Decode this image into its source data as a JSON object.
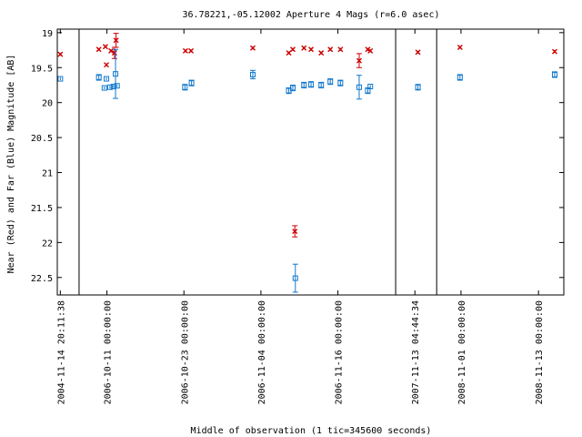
{
  "chart_data": {
    "type": "scatter",
    "title": "36.78221,-05.12002   Aperture 4 Mags (r=6.0 asec)",
    "xlabel": "Middle of observation (1 tic=345600 seconds)",
    "ylabel": "Near (Red) and Far (Blue) Magnitude [AB]",
    "y_axis_inverted": true,
    "ylim": [
      22.75,
      18.95
    ],
    "xlim": [
      0,
      100
    ],
    "y_ticks": [
      {
        "value": 19,
        "label": "19"
      },
      {
        "value": 19.5,
        "label": "19.5"
      },
      {
        "value": 20,
        "label": "20"
      },
      {
        "value": 20.5,
        "label": "20.5"
      },
      {
        "value": 21,
        "label": "21"
      },
      {
        "value": 21.5,
        "label": "21.5"
      },
      {
        "value": 22,
        "label": "22"
      },
      {
        "value": 22.5,
        "label": "22.5"
      }
    ],
    "x_ticks": [
      {
        "x": 0.6,
        "label": "2004-11-14 20:11:38"
      },
      {
        "x": 9.8,
        "label": "2006-10-11 00:00:00"
      },
      {
        "x": 25.0,
        "label": "2006-10-23 00:00:00"
      },
      {
        "x": 40.2,
        "label": "2006-11-04 00:00:00"
      },
      {
        "x": 55.4,
        "label": "2006-11-16 00:00:00"
      },
      {
        "x": 70.6,
        "label": "2007-11-13 04:44:34"
      },
      {
        "x": 79.7,
        "label": "2008-11-01 00:00:00"
      },
      {
        "x": 95.0,
        "label": "2008-11-13 00:00:00"
      }
    ],
    "segment_dividers": [
      4.3,
      66.8,
      74.9
    ],
    "series": [
      {
        "color": "#cc0000",
        "marker": "x",
        "points": [
          {
            "x": 0.6,
            "y": 19.31,
            "err": 0.02
          },
          {
            "x": 8.2,
            "y": 19.24,
            "err": 0.02
          },
          {
            "x": 9.5,
            "y": 19.2,
            "err": 0.02
          },
          {
            "x": 9.7,
            "y": 19.46,
            "err": 0.02
          },
          {
            "x": 10.6,
            "y": 19.26,
            "err": 0.02
          },
          {
            "x": 11.3,
            "y": 19.29,
            "err": 0.08
          },
          {
            "x": 11.6,
            "y": 19.11,
            "err": 0.1
          },
          {
            "x": 25.3,
            "y": 19.26,
            "err": 0.02
          },
          {
            "x": 26.4,
            "y": 19.26,
            "err": 0.02
          },
          {
            "x": 38.6,
            "y": 19.22,
            "err": 0.02
          },
          {
            "x": 45.7,
            "y": 19.29,
            "err": 0.02
          },
          {
            "x": 46.5,
            "y": 19.24,
            "err": 0.02
          },
          {
            "x": 46.9,
            "y": 21.84,
            "err": 0.08
          },
          {
            "x": 48.7,
            "y": 19.22,
            "err": 0.02
          },
          {
            "x": 50.1,
            "y": 19.24,
            "err": 0.02
          },
          {
            "x": 52.1,
            "y": 19.29,
            "err": 0.02
          },
          {
            "x": 53.9,
            "y": 19.24,
            "err": 0.02
          },
          {
            "x": 55.9,
            "y": 19.24,
            "err": 0.02
          },
          {
            "x": 59.6,
            "y": 19.4,
            "err": 0.1
          },
          {
            "x": 61.3,
            "y": 19.24,
            "err": 0.02
          },
          {
            "x": 61.8,
            "y": 19.26,
            "err": 0.02
          },
          {
            "x": 71.2,
            "y": 19.28,
            "err": 0.02
          },
          {
            "x": 79.5,
            "y": 19.21,
            "err": 0.02
          },
          {
            "x": 98.2,
            "y": 19.27,
            "err": 0.02
          }
        ]
      },
      {
        "color": "#1177cc",
        "marker": "square",
        "points": [
          {
            "x": 0.6,
            "y": 19.66,
            "err": 0.02
          },
          {
            "x": 8.2,
            "y": 19.64,
            "err": 0.04
          },
          {
            "x": 9.3,
            "y": 19.79,
            "err": 0.02
          },
          {
            "x": 9.7,
            "y": 19.66,
            "err": 0.02
          },
          {
            "x": 10.4,
            "y": 19.78,
            "err": 0.02
          },
          {
            "x": 11.1,
            "y": 19.77,
            "err": 0.02
          },
          {
            "x": 11.5,
            "y": 19.59,
            "err": 0.35
          },
          {
            "x": 11.8,
            "y": 19.76,
            "err": 0.02
          },
          {
            "x": 25.2,
            "y": 19.78,
            "err": 0.04
          },
          {
            "x": 26.5,
            "y": 19.72,
            "err": 0.04
          },
          {
            "x": 38.6,
            "y": 19.6,
            "err": 0.06
          },
          {
            "x": 45.7,
            "y": 19.83,
            "err": 0.04
          },
          {
            "x": 46.5,
            "y": 19.79,
            "err": 0.04
          },
          {
            "x": 47.0,
            "y": 22.51,
            "err": 0.2
          },
          {
            "x": 48.7,
            "y": 19.75,
            "err": 0.04
          },
          {
            "x": 50.1,
            "y": 19.74,
            "err": 0.04
          },
          {
            "x": 52.1,
            "y": 19.75,
            "err": 0.04
          },
          {
            "x": 53.9,
            "y": 19.7,
            "err": 0.04
          },
          {
            "x": 55.9,
            "y": 19.72,
            "err": 0.04
          },
          {
            "x": 59.6,
            "y": 19.78,
            "err": 0.17
          },
          {
            "x": 61.3,
            "y": 19.83,
            "err": 0.04
          },
          {
            "x": 61.8,
            "y": 19.77,
            "err": 0.02
          },
          {
            "x": 71.2,
            "y": 19.78,
            "err": 0.04
          },
          {
            "x": 79.5,
            "y": 19.64,
            "err": 0.04
          },
          {
            "x": 98.2,
            "y": 19.6,
            "err": 0.04
          }
        ]
      }
    ],
    "grid": false,
    "legend": "none"
  }
}
